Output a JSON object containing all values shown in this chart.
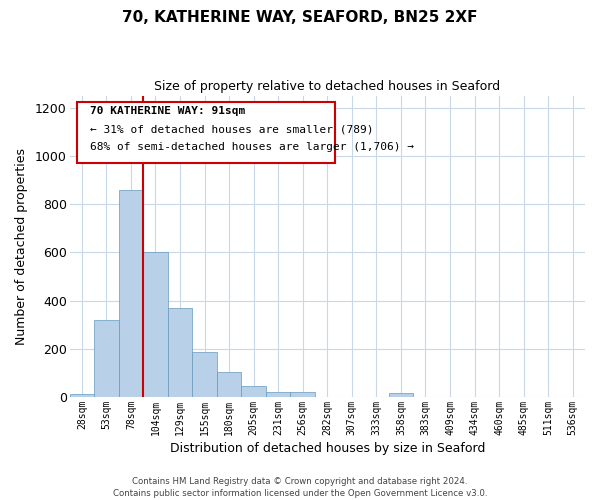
{
  "title": "70, KATHERINE WAY, SEAFORD, BN25 2XF",
  "subtitle": "Size of property relative to detached houses in Seaford",
  "xlabel": "Distribution of detached houses by size in Seaford",
  "ylabel": "Number of detached properties",
  "bin_labels": [
    "28sqm",
    "53sqm",
    "78sqm",
    "104sqm",
    "129sqm",
    "155sqm",
    "180sqm",
    "205sqm",
    "231sqm",
    "256sqm",
    "282sqm",
    "307sqm",
    "333sqm",
    "358sqm",
    "383sqm",
    "409sqm",
    "434sqm",
    "460sqm",
    "485sqm",
    "511sqm",
    "536sqm"
  ],
  "bar_values": [
    12,
    320,
    860,
    600,
    370,
    185,
    105,
    45,
    22,
    20,
    0,
    0,
    0,
    15,
    0,
    0,
    0,
    0,
    0,
    0,
    0
  ],
  "bar_color": "#b8d0e8",
  "bar_edgecolor": "#6699bb",
  "vline_x": 3.0,
  "vline_color": "#cc0000",
  "ylim": [
    0,
    1250
  ],
  "yticks": [
    0,
    200,
    400,
    600,
    800,
    1000,
    1200
  ],
  "annotation_title": "70 KATHERINE WAY: 91sqm",
  "annotation_line1": "← 31% of detached houses are smaller (789)",
  "annotation_line2": "68% of semi-detached houses are larger (1,706) →",
  "annotation_box_color": "#cc0000",
  "footer_line1": "Contains HM Land Registry data © Crown copyright and database right 2024.",
  "footer_line2": "Contains public sector information licensed under the Open Government Licence v3.0."
}
